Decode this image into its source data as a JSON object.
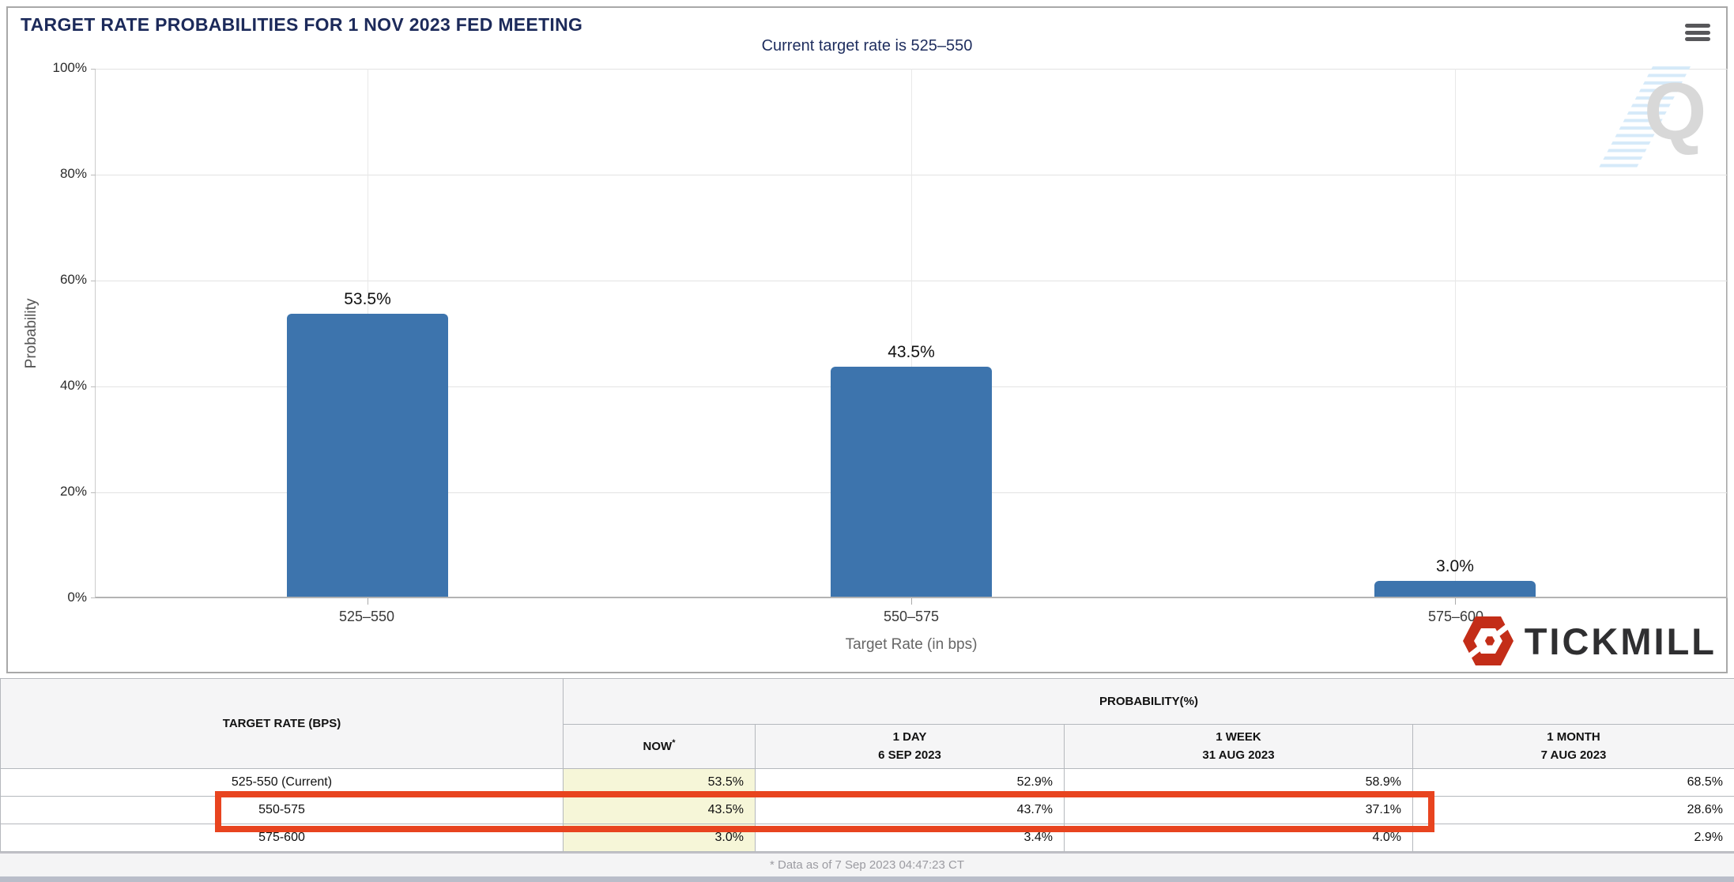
{
  "header": {
    "title": "TARGET RATE PROBABILITIES FOR 1 NOV 2023 FED MEETING",
    "menu_icon": "hamburger-icon"
  },
  "chart_data": {
    "type": "bar",
    "title": "Current target rate is 525–550",
    "categories": [
      "525–550",
      "550–575",
      "575–600"
    ],
    "values": [
      53.5,
      43.5,
      3.0
    ],
    "bar_labels": [
      "53.5%",
      "43.5%",
      "3.0%"
    ],
    "xlabel": "Target Rate (in bps)",
    "ylabel": "Probability",
    "ylim": [
      0,
      100
    ],
    "yticks": [
      "100%",
      "80%",
      "60%",
      "40%",
      "20%",
      "0%"
    ],
    "grid": true,
    "legend": "none",
    "bar_color": "#3d74ad"
  },
  "watermark": {
    "letter": "Q"
  },
  "logo": {
    "text": "TICKMILL"
  },
  "table": {
    "col1_header": "TARGET RATE (BPS)",
    "group_header": "PROBABILITY(%)",
    "columns": [
      {
        "line1": "NOW",
        "sup": "*",
        "line2": ""
      },
      {
        "line1": "1 DAY",
        "sup": "",
        "line2": "6 SEP 2023"
      },
      {
        "line1": "1 WEEK",
        "sup": "",
        "line2": "31 AUG 2023"
      },
      {
        "line1": "1 MONTH",
        "sup": "",
        "line2": "7 AUG 2023"
      }
    ],
    "rows": [
      {
        "rate": "525-550 (Current)",
        "now": "53.5%",
        "day": "52.9%",
        "week": "58.9%",
        "month": "68.5%"
      },
      {
        "rate": "550-575",
        "now": "43.5%",
        "day": "43.7%",
        "week": "37.1%",
        "month": "28.6%"
      },
      {
        "rate": "575-600",
        "now": "3.0%",
        "day": "3.4%",
        "week": "4.0%",
        "month": "2.9%"
      }
    ],
    "highlighted_row": "550-575"
  },
  "footer": {
    "note": "* Data as of 7 Sep 2023 04:47:23 CT"
  },
  "colors": {
    "bar_blue": "#3d74ad",
    "title_navy": "#1c2a5a",
    "highlight_red": "#e8441f",
    "now_cell_yellow": "#f6f6d8",
    "logo_red": "#c32d18",
    "bottom_strip": "#b9bdc9"
  }
}
